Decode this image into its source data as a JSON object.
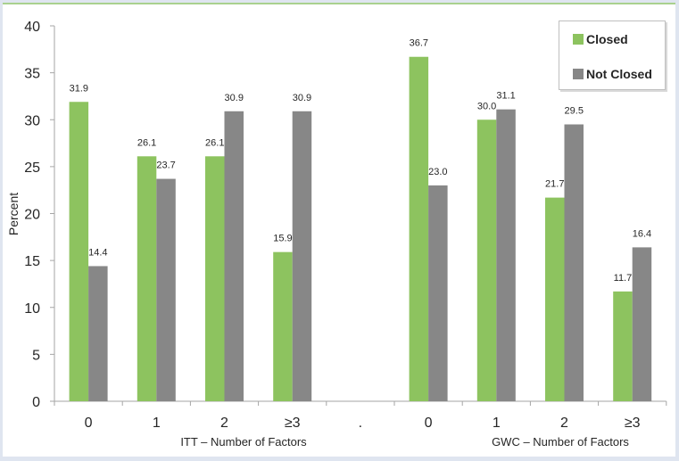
{
  "chart_data": {
    "type": "bar",
    "title": "",
    "ylabel": "Percent",
    "ylim": [
      0,
      40
    ],
    "yticks": [
      0,
      5,
      10,
      15,
      20,
      25,
      30,
      35,
      40
    ],
    "grid": false,
    "legend_position": "top-right",
    "categories": [
      "0",
      "1",
      "2",
      "≥3",
      ".",
      "0",
      "1",
      "2",
      "≥3"
    ],
    "group_labels": [
      {
        "label": "ITT – Number of Factors",
        "categories": [
          "0",
          "1",
          "2",
          "≥3"
        ]
      },
      {
        "label": "GWC – Number of Factors",
        "categories": [
          "0",
          "1",
          "2",
          "≥3"
        ]
      }
    ],
    "series": [
      {
        "name": "Closed",
        "color": "#8dc35f",
        "values": [
          31.9,
          26.1,
          26.1,
          15.9,
          null,
          36.7,
          30.0,
          21.7,
          11.7
        ]
      },
      {
        "name": "Not Closed",
        "color": "#878787",
        "values": [
          14.4,
          23.7,
          30.9,
          30.9,
          null,
          23.0,
          31.1,
          29.5,
          16.4
        ]
      }
    ],
    "data_labels": {
      "Closed": [
        "31.9",
        "26.1",
        "26.1",
        "15.9",
        "",
        "36.7",
        "30.0",
        "21.7",
        "11.7"
      ],
      "Not Closed": [
        "14.4",
        "23.7",
        "30.9",
        "30.9",
        "",
        "23.0",
        "31.1",
        "29.5",
        "16.4"
      ]
    }
  },
  "legend": {
    "items": [
      {
        "label": "Closed",
        "color": "#8dc35f"
      },
      {
        "label": "Not Closed",
        "color": "#878787"
      }
    ]
  },
  "axis": {
    "ylabel": "Percent",
    "group1_label": "ITT – Number of Factors",
    "group2_label": "GWC – Number of Factors"
  }
}
